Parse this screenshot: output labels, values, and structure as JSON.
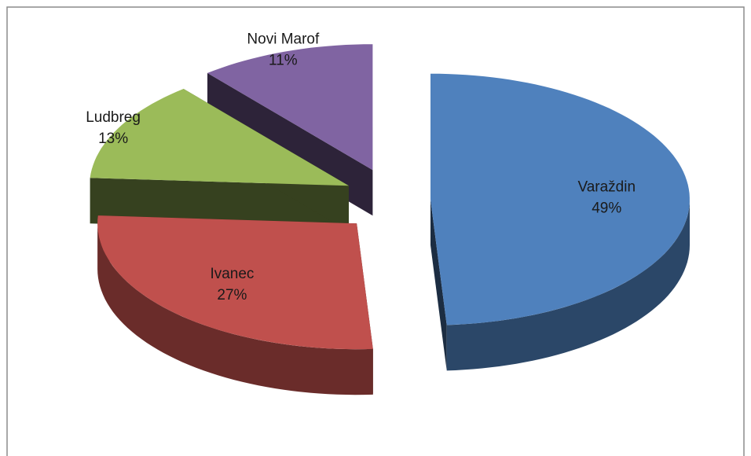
{
  "chart_data": {
    "type": "pie",
    "categories": [
      "Varaždin",
      "Ivanec",
      "Ludbreg",
      "Novi Marof"
    ],
    "values": [
      49,
      27,
      13,
      11
    ],
    "value_labels": [
      "49%",
      "27%",
      "13%",
      "11%"
    ],
    "colors": [
      "#4f81bd",
      "#c0504d",
      "#9bbb59",
      "#8064a2"
    ],
    "style": "3d",
    "exploded": true
  }
}
